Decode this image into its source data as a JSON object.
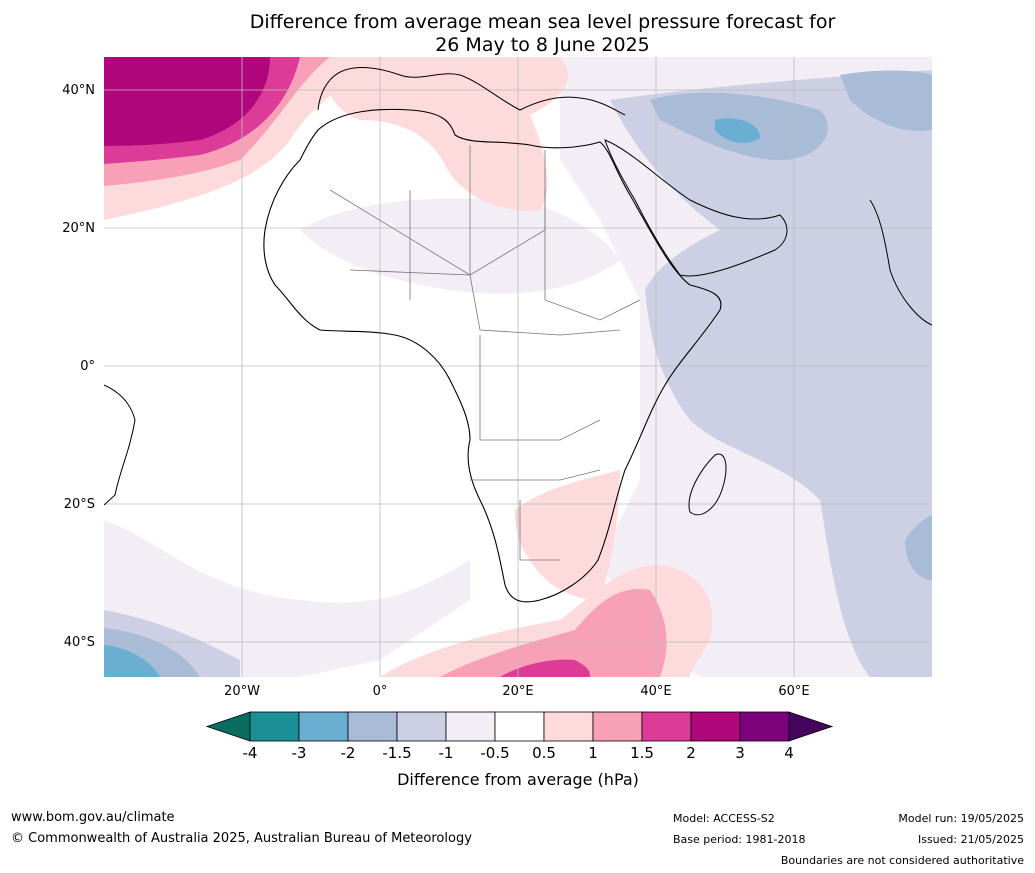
{
  "title": {
    "line1": "Difference from average mean sea level pressure forecast for",
    "line2": "26 May to 8 June 2025"
  },
  "map": {
    "lat_ticks": [
      "40°N",
      "20°N",
      "0°",
      "20°S",
      "40°S"
    ],
    "lon_ticks": [
      "20°W",
      "0°",
      "20°E",
      "40°E",
      "60°E"
    ],
    "region": "Africa"
  },
  "colorbar": {
    "tick_labels": [
      "-4",
      "-3",
      "-2",
      "-1.5",
      "-1",
      "-0.5",
      "0.5",
      "1",
      "1.5",
      "2",
      "3",
      "4"
    ],
    "colors": [
      "#0b6c60",
      "#1b8f96",
      "#6aaed1",
      "#a8bcd8",
      "#cdd0e4",
      "#f3eef5",
      "#ffffff",
      "#fddbdc",
      "#f7a0b8",
      "#dc3c98",
      "#b0087c",
      "#7b027b",
      "#45045e"
    ],
    "title": "Difference from average (hPa)"
  },
  "footer": {
    "website": "www.bom.gov.au/climate",
    "copyright": "© Commonwealth of Australia 2025, Australian Bureau of Meteorology",
    "model": "Model: ACCESS-S2",
    "base_period": "Base period: 1981-2018",
    "model_run": "Model run: 19/05/2025",
    "issued": "Issued: 21/05/2025",
    "disclaimer": "Boundaries are not considered authoritative"
  }
}
